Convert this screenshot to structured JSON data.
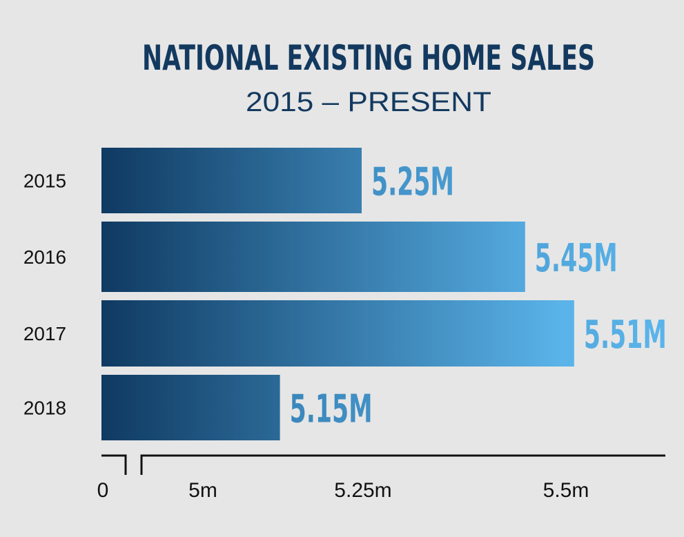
{
  "chart_data": {
    "type": "bar",
    "orientation": "horizontal",
    "title": "NATIONAL EXISTING HOME SALES",
    "subtitle": "2015 – PRESENT",
    "categories": [
      "2015",
      "2016",
      "2017",
      "2018"
    ],
    "values": [
      5.25,
      5.45,
      5.51,
      5.15
    ],
    "value_labels": [
      "5.25M",
      "5.45M",
      "5.51M",
      "5.15M"
    ],
    "xlabel": "",
    "ylabel": "",
    "x_axis": {
      "broken": true,
      "tick_labels": [
        "0",
        "5m",
        "5.25m",
        "5.5m"
      ],
      "tick_values": [
        0,
        5,
        5.25,
        5.5
      ],
      "visible_range": [
        4.93,
        5.62
      ]
    },
    "grid": false,
    "legend": "none",
    "colors": {
      "background": "#e6e6e6",
      "title": "#13395f",
      "bar_dark": "#0f3a62",
      "bar_light": "#5ab4ea",
      "axis": "#111111"
    }
  }
}
